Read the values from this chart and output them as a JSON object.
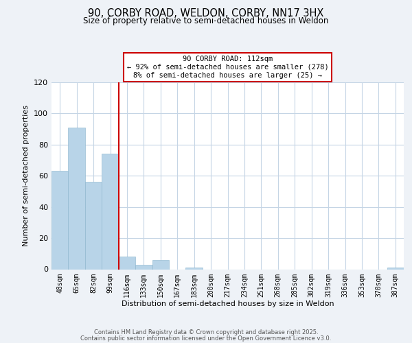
{
  "title1": "90, CORBY ROAD, WELDON, CORBY, NN17 3HX",
  "title2": "Size of property relative to semi-detached houses in Weldon",
  "xlabel": "Distribution of semi-detached houses by size in Weldon",
  "ylabel": "Number of semi-detached properties",
  "bar_color": "#b8d4e8",
  "bin_labels": [
    "48sqm",
    "65sqm",
    "82sqm",
    "99sqm",
    "116sqm",
    "133sqm",
    "150sqm",
    "167sqm",
    "183sqm",
    "200sqm",
    "217sqm",
    "234sqm",
    "251sqm",
    "268sqm",
    "285sqm",
    "302sqm",
    "319sqm",
    "336sqm",
    "353sqm",
    "370sqm",
    "387sqm"
  ],
  "bar_heights": [
    63,
    91,
    56,
    74,
    8,
    3,
    6,
    0,
    1,
    0,
    0,
    0,
    0,
    0,
    0,
    0,
    0,
    0,
    0,
    0,
    1
  ],
  "vline_index": 4,
  "vline_color": "#cc0000",
  "annotation_line1": "90 CORBY ROAD: 112sqm",
  "annotation_line2": "← 92% of semi-detached houses are smaller (278)",
  "annotation_line3": "8% of semi-detached houses are larger (25) →",
  "annotation_box_edge_color": "#cc0000",
  "ylim": [
    0,
    120
  ],
  "yticks": [
    0,
    20,
    40,
    60,
    80,
    100,
    120
  ],
  "background_color": "#eef2f7",
  "plot_background": "#ffffff",
  "grid_color": "#c5d5e5",
  "footer1": "Contains HM Land Registry data © Crown copyright and database right 2025.",
  "footer2": "Contains public sector information licensed under the Open Government Licence v3.0."
}
